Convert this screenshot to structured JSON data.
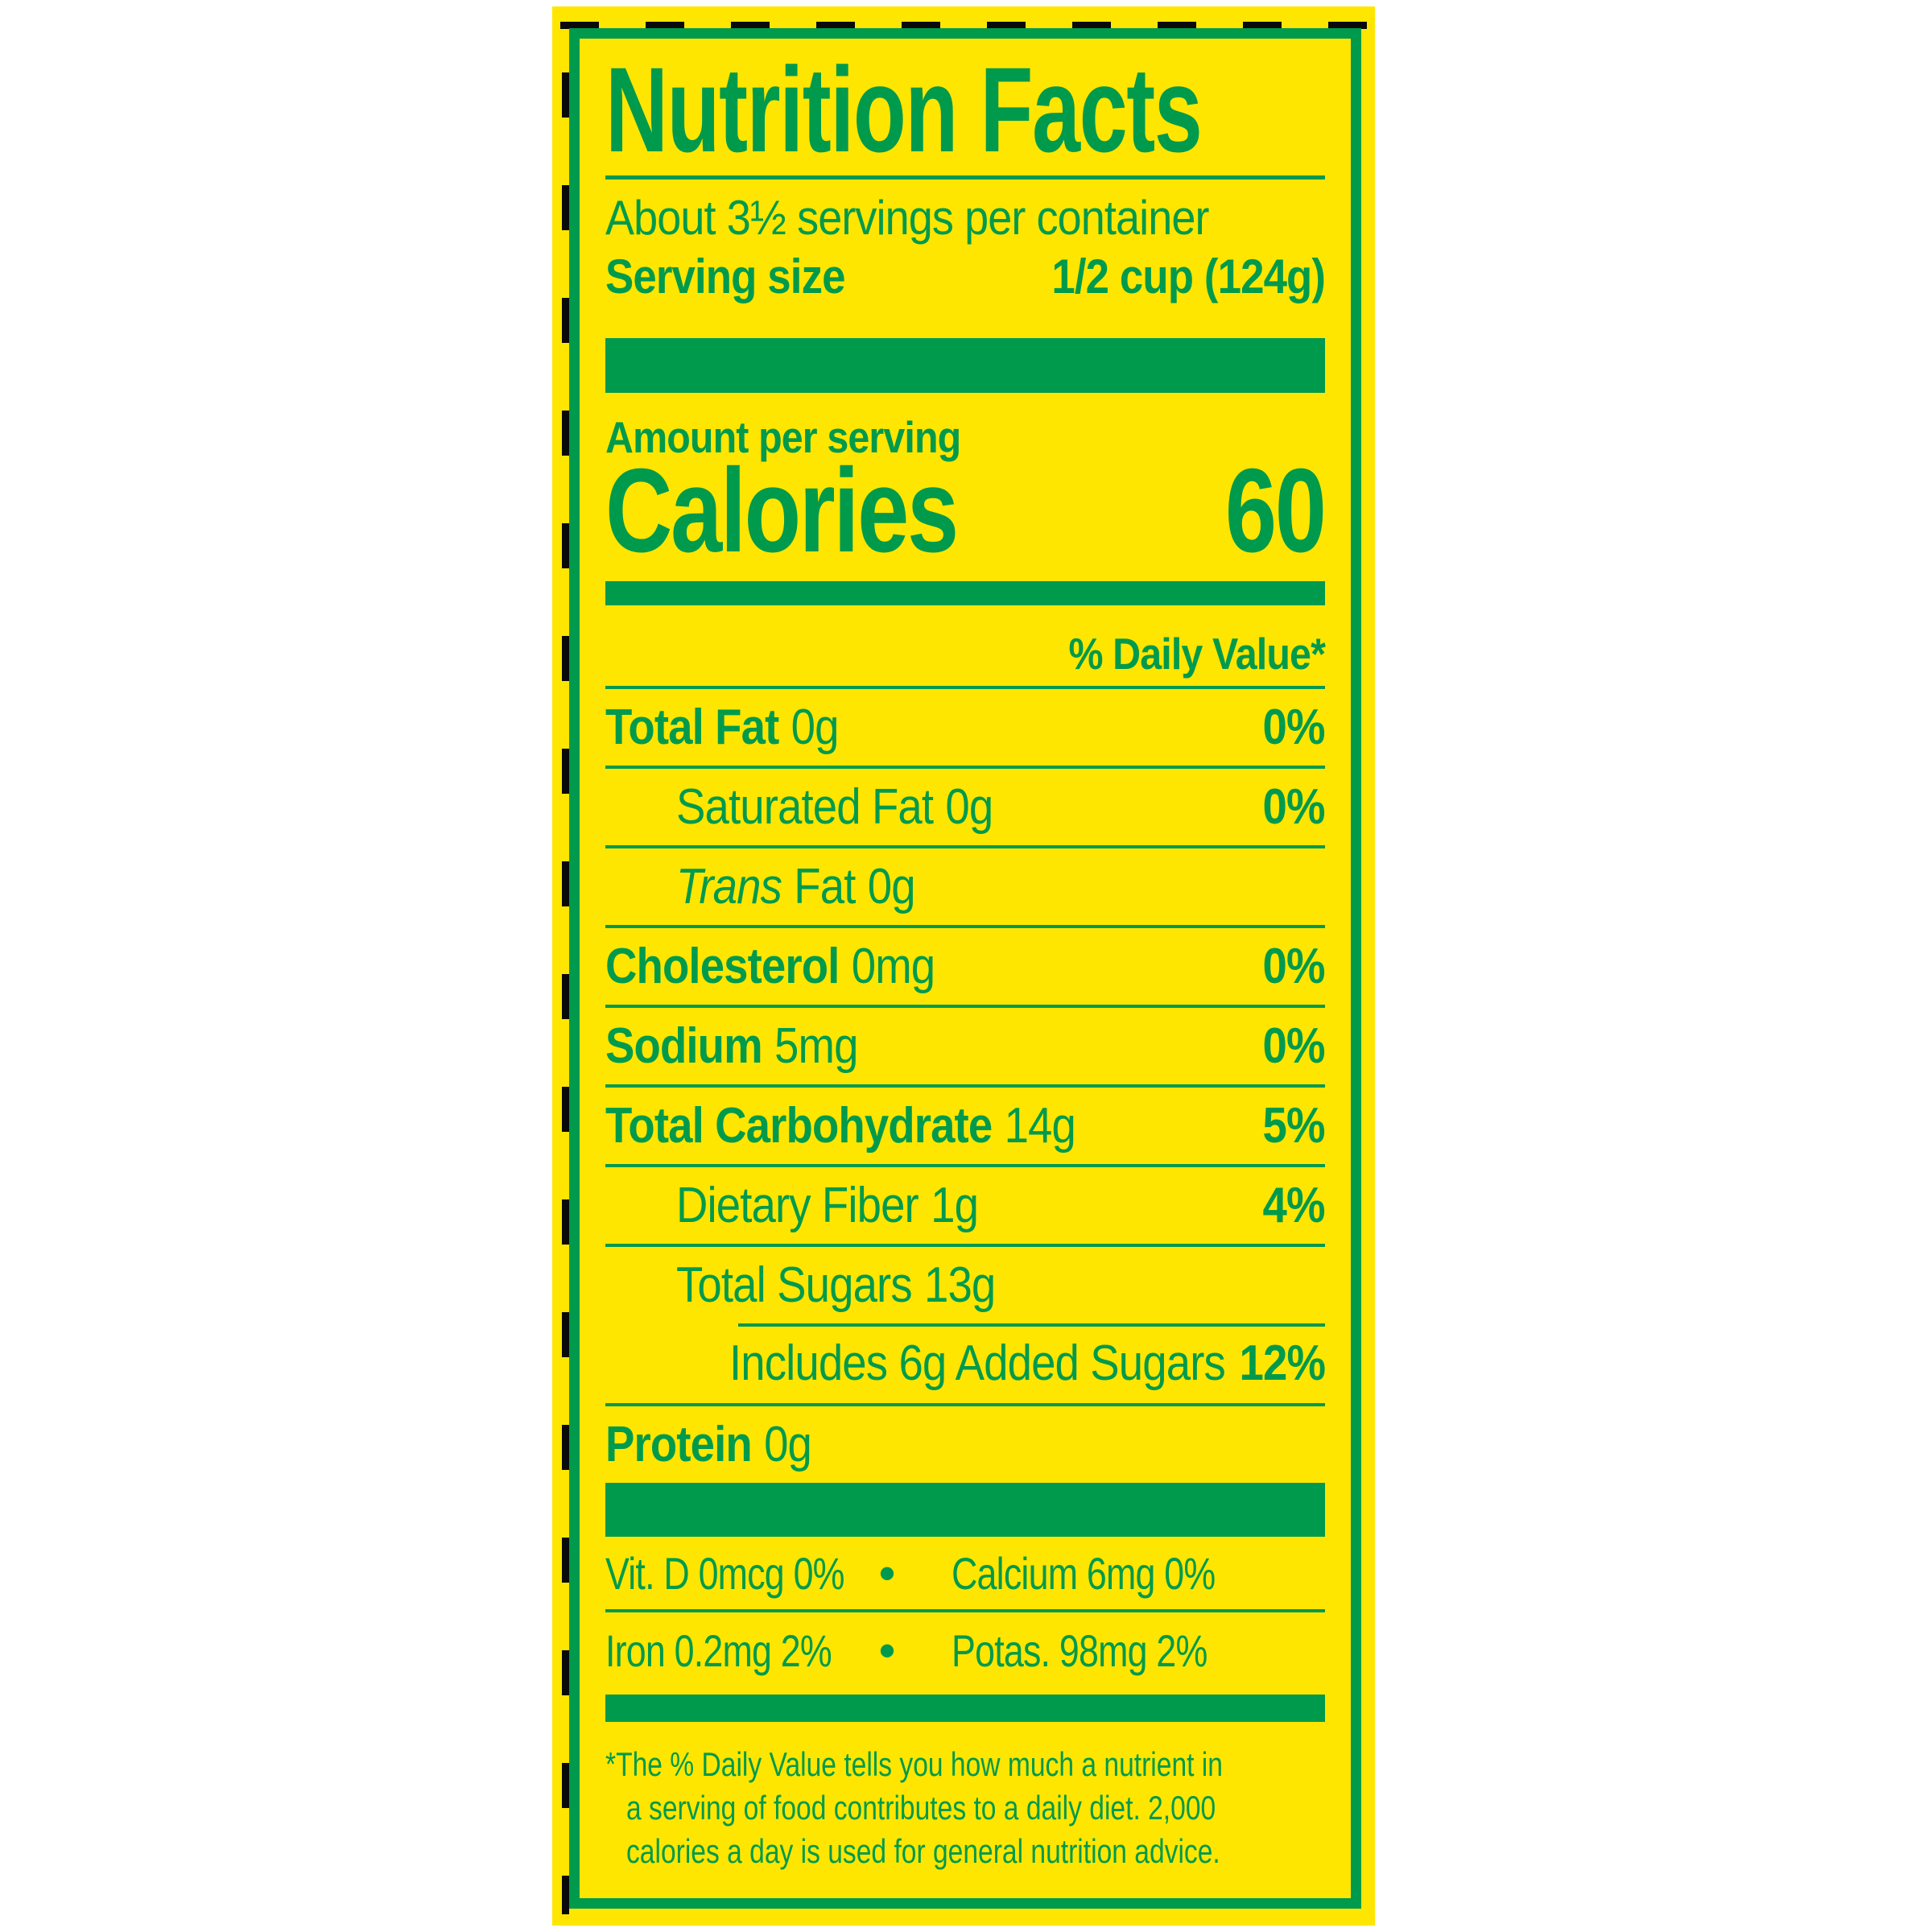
{
  "colors": {
    "label_green": "#009a4d",
    "label_yellow": "#ffe600",
    "cut_line_black": "#0a0a0a",
    "page_background": "#ffffff"
  },
  "nutrition_label": {
    "title": "Nutrition Facts",
    "servings_per_container": "About 3½ servings per container",
    "serving_size": {
      "label": "Serving size",
      "value": "1/2 cup (124g)"
    },
    "amount_per_serving": "Amount per serving",
    "calories": {
      "label": "Calories",
      "value": "60"
    },
    "daily_value_header": "% Daily Value*",
    "rows": {
      "total_fat": {
        "name": "Total Fat",
        "amount": "0g",
        "dv": "0%"
      },
      "saturated_fat": {
        "name": "Saturated Fat",
        "amount": "0g",
        "dv": "0%"
      },
      "trans_fat": {
        "name_italic": "Trans",
        "name": "Fat",
        "amount": "0g"
      },
      "cholesterol": {
        "name": "Cholesterol",
        "amount": "0mg",
        "dv": "0%"
      },
      "sodium": {
        "name": "Sodium",
        "amount": "5mg",
        "dv": "0%"
      },
      "total_carbohydrate": {
        "name": "Total Carbohydrate",
        "amount": "14g",
        "dv": "5%"
      },
      "dietary_fiber": {
        "name": "Dietary Fiber",
        "amount": "1g",
        "dv": "4%"
      },
      "total_sugars": {
        "name": "Total Sugars",
        "amount": "13g"
      },
      "added_sugars": {
        "name": "Includes 6g Added Sugars",
        "dv": "12%"
      },
      "protein": {
        "name": "Protein",
        "amount": "0g"
      }
    },
    "micronutrients": {
      "bullet": "•",
      "row1": {
        "left": "Vit. D 0mcg 0%",
        "right": "Calcium 6mg 0%"
      },
      "row2": {
        "left": "Iron 0.2mg 2%",
        "right": "Potas. 98mg 2%"
      }
    },
    "footnote_lines": [
      "*The % Daily Value tells you how much a nutrient in",
      "a serving of food contributes to a daily diet. 2,000",
      "calories a day is used for general nutrition advice."
    ]
  }
}
